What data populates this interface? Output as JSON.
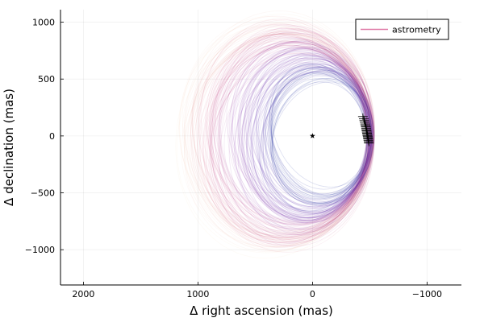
{
  "chart_data": {
    "type": "scatter",
    "title": "",
    "xlabel": "Δ right ascension (mas)",
    "ylabel": "Δ declination (mas)",
    "xlim": [
      2200,
      -1300
    ],
    "ylim": [
      -1310,
      1110
    ],
    "x_reversed": true,
    "x_ticks": [
      2000,
      1000,
      0,
      -1000
    ],
    "x_tick_labels": [
      "2000",
      "1000",
      "0",
      "−1000"
    ],
    "y_ticks": [
      1000,
      500,
      0,
      -500,
      -1000
    ],
    "y_tick_labels": [
      "1000",
      "500",
      "0",
      "−500",
      "−1000"
    ],
    "grid": true,
    "legend": {
      "position": "top-right",
      "entries": [
        {
          "label": "astrometry",
          "color": "#e07aa8"
        }
      ]
    },
    "star": {
      "x": 0,
      "y": 0,
      "marker": "star",
      "color": "#000000"
    },
    "orbit_family": {
      "count": 160,
      "periastron_x_range": [
        -470,
        -540
      ],
      "periastron_y_range": [
        -160,
        160
      ],
      "apoastron_x_range": [
        350,
        1200
      ],
      "semi_minor_y_range": [
        380,
        1000
      ],
      "colormap": [
        "#e8a050",
        "#c2185b",
        "#7b1fa2",
        "#5e35b1",
        "#3949ab"
      ]
    },
    "astrometry_points": {
      "x": [
        -440,
        -448,
        -452,
        -456,
        -460,
        -463,
        -466,
        -468,
        -470,
        -472,
        -474,
        -476,
        -478,
        -480,
        -482,
        -484,
        -486,
        -488,
        -490,
        -492
      ],
      "y": [
        170,
        150,
        135,
        120,
        105,
        92,
        80,
        68,
        56,
        45,
        34,
        24,
        14,
        4,
        -6,
        -16,
        -26,
        -38,
        -50,
        -62
      ],
      "marker": "plus-with-errorbars",
      "color": "#000000"
    }
  }
}
